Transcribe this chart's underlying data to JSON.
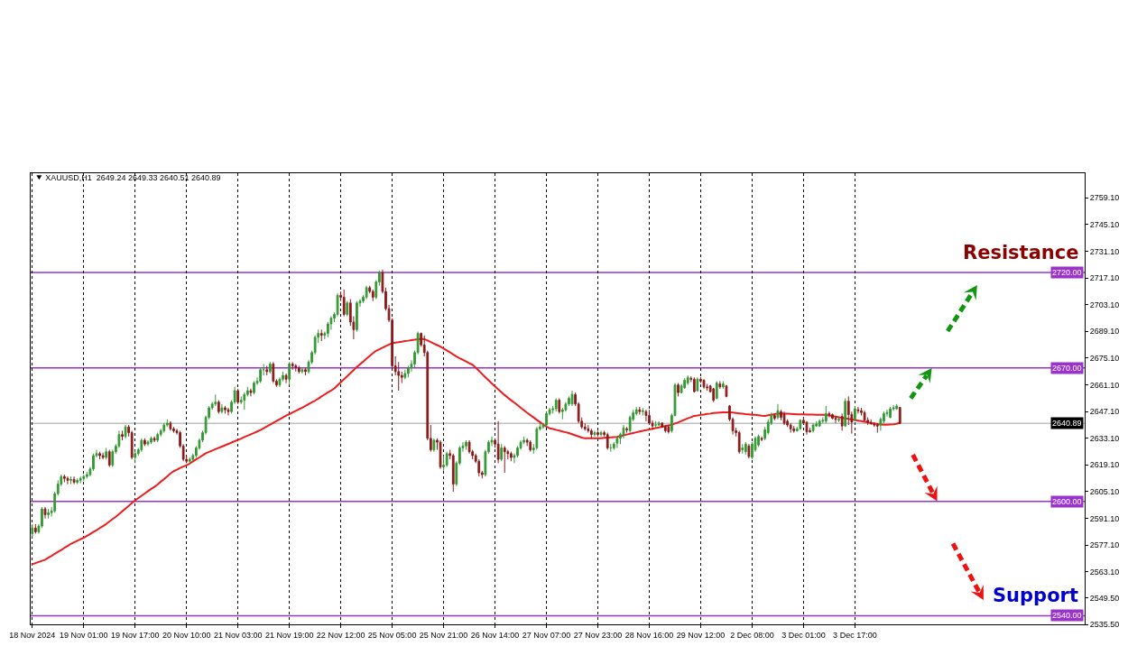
{
  "chart_data": {
    "type": "candlestick",
    "title": "XAUUSD,H1  2649.24 2649.33 2640.51 2640.89",
    "categories": [
      "18 Nov 2024",
      null,
      null,
      null,
      null,
      null,
      null,
      null,
      null,
      null,
      null,
      null,
      null,
      null,
      null,
      null,
      "19 Nov 01:00",
      null,
      null,
      null,
      null,
      null,
      null,
      null,
      null,
      null,
      null,
      null,
      null,
      null,
      null,
      null,
      "19 Nov 17:00",
      null,
      null,
      null,
      null,
      null,
      null,
      null,
      null,
      null,
      null,
      null,
      null,
      null,
      null,
      null,
      "20 Nov 10:00",
      null,
      null,
      null,
      null,
      null,
      null,
      null,
      null,
      null,
      null,
      null,
      null,
      null,
      null,
      null,
      "21 Nov 03:00",
      null,
      null,
      null,
      null,
      null,
      null,
      null,
      null,
      null,
      null,
      null,
      null,
      null,
      null,
      null,
      "21 Nov 19:00",
      null,
      null,
      null,
      null,
      null,
      null,
      null,
      null,
      null,
      null,
      null,
      null,
      null,
      null,
      null,
      "22 Nov 12:00",
      null,
      null,
      null,
      null,
      null,
      null,
      null,
      null,
      null,
      null,
      null,
      null,
      null,
      null,
      null,
      "25 Nov 05:00",
      null,
      null,
      null,
      null,
      null,
      null,
      null,
      null,
      null,
      null,
      null,
      null,
      null,
      null,
      null,
      "25 Nov 21:00",
      null,
      null,
      null,
      null,
      null,
      null,
      null,
      null,
      null,
      null,
      null,
      null,
      null,
      null,
      null,
      "26 Nov 14:00",
      null,
      null,
      null,
      null,
      null,
      null,
      null,
      null,
      null,
      null,
      null,
      null,
      null,
      null,
      null,
      "27 Nov 07:00",
      null,
      null,
      null,
      null,
      null,
      null,
      null,
      null,
      null,
      null,
      null,
      null,
      null,
      null,
      null,
      "27 Nov 23:00",
      null,
      null,
      null,
      null,
      null,
      null,
      null,
      null,
      null,
      null,
      null,
      null,
      null,
      null,
      null,
      "28 Nov 16:00",
      null,
      null,
      null,
      null,
      null,
      null,
      null,
      null,
      null,
      null,
      null,
      null,
      null,
      null,
      null,
      "29 Nov 12:00",
      null,
      null,
      null,
      null,
      null,
      null,
      null,
      null,
      null,
      null,
      null,
      null,
      null,
      null,
      null,
      "2 Dec 08:00",
      null,
      null,
      null,
      null,
      null,
      null,
      null,
      null,
      null,
      null,
      null,
      null,
      null,
      null,
      null,
      "3 Dec 01:00",
      null,
      null,
      null,
      null,
      null,
      null,
      null,
      null,
      null,
      null,
      null,
      null,
      null,
      null,
      null,
      "3 Dec 17:00",
      null,
      null,
      null,
      null,
      null,
      null,
      null,
      null,
      null,
      null,
      null,
      null,
      null,
      null
    ],
    "ohlc": [
      [
        2583,
        2588,
        2581,
        2586
      ],
      [
        2586,
        2588,
        2583,
        2584
      ],
      [
        2584,
        2588,
        2583,
        2587
      ],
      [
        2587,
        2597,
        2586,
        2596
      ],
      [
        2596,
        2597,
        2591,
        2593
      ],
      [
        2593,
        2596,
        2591,
        2594
      ],
      [
        2594,
        2597,
        2592,
        2595
      ],
      [
        2595,
        2605,
        2594,
        2604
      ],
      [
        2604,
        2611,
        2603,
        2609
      ],
      [
        2609,
        2614,
        2608,
        2613
      ],
      [
        2613,
        2614,
        2610,
        2612
      ],
      [
        2612,
        2613,
        2609,
        2611
      ],
      [
        2611,
        2613,
        2609,
        2611.5
      ],
      [
        2611.5,
        2613,
        2609,
        2610
      ],
      [
        2610,
        2612,
        2609,
        2611
      ],
      [
        2611,
        2613,
        2609.5,
        2612
      ],
      [
        2612,
        2614,
        2610.5,
        2613
      ],
      [
        2613,
        2615.5,
        2612,
        2614
      ],
      [
        2614,
        2618,
        2613,
        2617
      ],
      [
        2617,
        2625,
        2616,
        2624
      ],
      [
        2624,
        2627,
        2623,
        2625
      ],
      [
        2625,
        2626,
        2622,
        2624
      ],
      [
        2624,
        2625.5,
        2622,
        2623
      ],
      [
        2623,
        2628,
        2622,
        2626
      ],
      [
        2626,
        2627,
        2618,
        2619
      ],
      [
        2619,
        2627,
        2618,
        2626
      ],
      [
        2626,
        2630,
        2625,
        2629
      ],
      [
        2629,
        2637,
        2628,
        2635
      ],
      [
        2635,
        2637,
        2632,
        2634
      ],
      [
        2634,
        2640,
        2633,
        2639
      ],
      [
        2639,
        2640,
        2634,
        2636
      ],
      [
        2636,
        2637,
        2622,
        2623
      ],
      [
        2623,
        2627,
        2620,
        2625
      ],
      [
        2625,
        2628,
        2624,
        2627
      ],
      [
        2627,
        2633,
        2626,
        2632
      ],
      [
        2632,
        2633,
        2629,
        2630
      ],
      [
        2630,
        2632,
        2629,
        2631
      ],
      [
        2631,
        2634,
        2630,
        2633
      ],
      [
        2633,
        2634,
        2631,
        2632
      ],
      [
        2632,
        2636,
        2631,
        2635
      ],
      [
        2635,
        2638,
        2634,
        2637
      ],
      [
        2637,
        2641,
        2636,
        2640
      ],
      [
        2640,
        2643,
        2639,
        2641
      ],
      [
        2641,
        2642,
        2637,
        2638
      ],
      [
        2638,
        2639,
        2636,
        2637
      ],
      [
        2637,
        2638,
        2635,
        2636
      ],
      [
        2636,
        2637,
        2628,
        2629
      ],
      [
        2629,
        2630,
        2621,
        2622
      ],
      [
        2622,
        2624,
        2620,
        2621
      ],
      [
        2621,
        2623,
        2620,
        2622
      ],
      [
        2622,
        2625,
        2621,
        2624
      ],
      [
        2624,
        2629,
        2623,
        2628
      ],
      [
        2628,
        2633,
        2627,
        2632
      ],
      [
        2632,
        2637,
        2631,
        2636
      ],
      [
        2636,
        2645,
        2635,
        2644
      ],
      [
        2644,
        2650,
        2643,
        2649
      ],
      [
        2649,
        2652,
        2648,
        2651
      ],
      [
        2651,
        2656,
        2650,
        2652
      ],
      [
        2652,
        2653,
        2646,
        2647
      ],
      [
        2647,
        2651,
        2646,
        2649
      ],
      [
        2649,
        2650,
        2646,
        2648
      ],
      [
        2648,
        2649,
        2645,
        2647
      ],
      [
        2647,
        2653,
        2646,
        2652
      ],
      [
        2652,
        2660,
        2651,
        2658
      ],
      [
        2658,
        2659,
        2651,
        2652
      ],
      [
        2652,
        2655,
        2651,
        2653
      ],
      [
        2653,
        2657,
        2648,
        2656
      ],
      [
        2656,
        2660,
        2655,
        2658
      ],
      [
        2658,
        2659,
        2655,
        2657
      ],
      [
        2657,
        2663,
        2656,
        2662
      ],
      [
        2662,
        2665,
        2661,
        2663
      ],
      [
        2663,
        2670,
        2662,
        2669
      ],
      [
        2669,
        2672,
        2666,
        2669
      ],
      [
        2669,
        2671,
        2666,
        2668
      ],
      [
        2668,
        2673,
        2667,
        2672
      ],
      [
        2672,
        2673,
        2662,
        2663
      ],
      [
        2663,
        2664,
        2660,
        2661
      ],
      [
        2661,
        2665,
        2660,
        2664
      ],
      [
        2664,
        2668,
        2663,
        2666
      ],
      [
        2666,
        2667,
        2662,
        2664
      ],
      [
        2664,
        2673,
        2661,
        2672
      ],
      [
        2672,
        2673,
        2669,
        2671
      ],
      [
        2671,
        2672,
        2668,
        2670
      ],
      [
        2670,
        2671,
        2667,
        2668
      ],
      [
        2668,
        2670,
        2667,
        2669
      ],
      [
        2669,
        2670,
        2666,
        2668
      ],
      [
        2668,
        2674,
        2667,
        2673
      ],
      [
        2673,
        2679,
        2672,
        2678
      ],
      [
        2678,
        2687,
        2677,
        2686
      ],
      [
        2686,
        2690,
        2683,
        2688
      ],
      [
        2688,
        2690,
        2684,
        2687
      ],
      [
        2687,
        2689,
        2685,
        2688
      ],
      [
        2688,
        2694,
        2686,
        2693
      ],
      [
        2693,
        2697,
        2690,
        2696
      ],
      [
        2696,
        2699,
        2694,
        2698
      ],
      [
        2698,
        2709,
        2697,
        2708
      ],
      [
        2708,
        2710,
        2705,
        2707
      ],
      [
        2707,
        2711,
        2697,
        2698
      ],
      [
        2698,
        2705,
        2697,
        2704
      ],
      [
        2704,
        2706,
        2692,
        2694
      ],
      [
        2694,
        2697,
        2685,
        2690
      ],
      [
        2690,
        2705,
        2689,
        2704
      ],
      [
        2704,
        2706,
        2702,
        2705
      ],
      [
        2705,
        2708,
        2704,
        2707
      ],
      [
        2707,
        2713,
        2706,
        2712
      ],
      [
        2712,
        2713,
        2709,
        2710
      ],
      [
        2710,
        2711,
        2705,
        2707
      ],
      [
        2707,
        2716,
        2706,
        2715
      ],
      [
        2715,
        2721,
        2713,
        2720
      ],
      [
        2720,
        2721.5,
        2709,
        2710
      ],
      [
        2710,
        2712,
        2700,
        2701
      ],
      [
        2701,
        2703,
        2694,
        2695
      ],
      [
        2695,
        2696,
        2670,
        2671
      ],
      [
        2671,
        2676,
        2666,
        2668
      ],
      [
        2668,
        2673,
        2658,
        2666
      ],
      [
        2666,
        2668,
        2662,
        2665
      ],
      [
        2665,
        2669,
        2664,
        2667
      ],
      [
        2667,
        2671,
        2665,
        2670
      ],
      [
        2670,
        2674,
        2668,
        2672
      ],
      [
        2672,
        2679,
        2670,
        2678
      ],
      [
        2678,
        2689,
        2677,
        2688
      ],
      [
        2688,
        2688.5,
        2681,
        2682
      ],
      [
        2682,
        2687,
        2676,
        2678
      ],
      [
        2678,
        2679,
        2632,
        2633
      ],
      [
        2633,
        2640,
        2626,
        2627
      ],
      [
        2627,
        2633,
        2626,
        2632
      ],
      [
        2632,
        2633,
        2627,
        2631
      ],
      [
        2631,
        2632,
        2617,
        2618
      ],
      [
        2618,
        2624,
        2616,
        2619
      ],
      [
        2619,
        2626,
        2618,
        2625
      ],
      [
        2625,
        2627,
        2622,
        2624
      ],
      [
        2624,
        2625,
        2605,
        2609
      ],
      [
        2609,
        2621,
        2608,
        2620
      ],
      [
        2620,
        2629,
        2619,
        2628
      ],
      [
        2628,
        2631,
        2626,
        2629
      ],
      [
        2629,
        2632,
        2627,
        2631
      ],
      [
        2631,
        2632,
        2625,
        2626
      ],
      [
        2626,
        2627,
        2622,
        2624
      ],
      [
        2624,
        2625,
        2620,
        2621
      ],
      [
        2621,
        2622,
        2613,
        2615
      ],
      [
        2615,
        2616,
        2612,
        2614
      ],
      [
        2614,
        2627,
        2613,
        2626
      ],
      [
        2626,
        2632,
        2625,
        2631
      ],
      [
        2631,
        2634,
        2629,
        2632
      ],
      [
        2632,
        2633,
        2628,
        2630
      ],
      [
        2630,
        2642,
        2620,
        2622
      ],
      [
        2622,
        2630,
        2621,
        2628
      ],
      [
        2628,
        2629,
        2615,
        2626
      ],
      [
        2626,
        2627,
        2622,
        2625
      ],
      [
        2625,
        2626,
        2621,
        2623
      ],
      [
        2623,
        2625,
        2620,
        2624
      ],
      [
        2624,
        2629,
        2623,
        2628
      ],
      [
        2628,
        2632,
        2627,
        2631
      ],
      [
        2631,
        2634,
        2630,
        2632
      ],
      [
        2632,
        2633,
        2629,
        2631
      ],
      [
        2631,
        2632,
        2626,
        2627
      ],
      [
        2627,
        2630,
        2625,
        2628
      ],
      [
        2628,
        2639,
        2627,
        2638
      ],
      [
        2638,
        2641,
        2637,
        2639
      ],
      [
        2639,
        2641,
        2638,
        2640
      ],
      [
        2640,
        2647,
        2639,
        2646
      ],
      [
        2646,
        2649,
        2645,
        2648
      ],
      [
        2648,
        2650,
        2646,
        2648.5
      ],
      [
        2648.5,
        2654,
        2647,
        2653
      ],
      [
        2653,
        2654,
        2646,
        2647
      ],
      [
        2647,
        2649,
        2643,
        2648
      ],
      [
        2648,
        2652,
        2647,
        2651
      ],
      [
        2651,
        2655,
        2650,
        2654
      ],
      [
        2651,
        2658,
        2650,
        2656
      ],
      [
        2656,
        2657,
        2650,
        2651
      ],
      [
        2651,
        2652,
        2641,
        2642
      ],
      [
        2642,
        2644,
        2638,
        2639
      ],
      [
        2639,
        2641,
        2637,
        2638
      ],
      [
        2638,
        2640,
        2636,
        2637
      ],
      [
        2637,
        2638,
        2633,
        2635
      ],
      [
        2635,
        2637,
        2634,
        2636
      ],
      [
        2636,
        2637,
        2634,
        2635
      ],
      [
        2635,
        2637,
        2634,
        2636
      ],
      [
        2636,
        2637,
        2634,
        2635
      ],
      [
        2635,
        2636,
        2627,
        2628
      ],
      [
        2628,
        2630,
        2626,
        2628
      ],
      [
        2628,
        2631,
        2627,
        2630
      ],
      [
        2630.5,
        2634,
        2628,
        2633
      ],
      [
        2633,
        2636,
        2630,
        2635
      ],
      [
        2635,
        2640,
        2633,
        2638.5
      ],
      [
        2638,
        2639,
        2636,
        2637.5
      ],
      [
        2637,
        2645,
        2636,
        2644
      ],
      [
        2643,
        2648,
        2642,
        2646.5
      ],
      [
        2646,
        2649.5,
        2645,
        2648
      ],
      [
        2648,
        2649.5,
        2645.5,
        2647
      ],
      [
        2647,
        2649,
        2645,
        2647.5
      ],
      [
        2647,
        2648,
        2642,
        2645
      ],
      [
        2645,
        2648,
        2640,
        2641
      ],
      [
        2641,
        2642.5,
        2637.5,
        2639.5
      ],
      [
        2640,
        2642,
        2638.5,
        2640
      ],
      [
        2640,
        2642,
        2639.5,
        2641
      ],
      [
        2641,
        2641.5,
        2638.5,
        2639
      ],
      [
        2639,
        2640,
        2636,
        2637
      ],
      [
        2639,
        2640,
        2635.5,
        2636.5
      ],
      [
        2637,
        2646,
        2636,
        2645
      ],
      [
        2645,
        2662,
        2644.5,
        2661
      ],
      [
        2661,
        2662,
        2655,
        2657
      ],
      [
        2657,
        2661.5,
        2656.5,
        2660.5
      ],
      [
        2659.5,
        2664.5,
        2659,
        2663.5
      ],
      [
        2662,
        2666,
        2661,
        2665
      ],
      [
        2664.5,
        2665.5,
        2662.5,
        2664
      ],
      [
        2664,
        2665,
        2657,
        2657.5
      ],
      [
        2658,
        2665,
        2657.5,
        2664
      ],
      [
        2664,
        2665,
        2662,
        2663
      ],
      [
        2663.5,
        2664,
        2659,
        2660
      ],
      [
        2660,
        2661.5,
        2658,
        2659.5
      ],
      [
        2660.5,
        2661,
        2657,
        2657.5
      ],
      [
        2659,
        2659.5,
        2652,
        2653
      ],
      [
        2654,
        2663,
        2653.5,
        2662
      ],
      [
        2661.5,
        2663,
        2659,
        2660
      ],
      [
        2660,
        2663,
        2659,
        2661.5
      ],
      [
        2660.5,
        2661,
        2654.5,
        2655
      ],
      [
        2650,
        2650.5,
        2642,
        2643
      ],
      [
        2643,
        2644,
        2635,
        2637
      ],
      [
        2637,
        2638.5,
        2634,
        2636
      ],
      [
        2636,
        2637,
        2625,
        2626
      ],
      [
        2627,
        2630,
        2625,
        2628
      ],
      [
        2626,
        2631,
        2624.5,
        2630
      ],
      [
        2629,
        2630,
        2622.5,
        2623.5
      ],
      [
        2623,
        2631,
        2622,
        2630
      ],
      [
        2627,
        2634,
        2626,
        2633
      ],
      [
        2629.5,
        2635,
        2628.5,
        2634
      ],
      [
        2633,
        2634,
        2631.5,
        2632.5
      ],
      [
        2633,
        2639,
        2632,
        2637.5
      ],
      [
        2636,
        2643,
        2635,
        2641.5
      ],
      [
        2641,
        2646.5,
        2640,
        2645
      ],
      [
        2645,
        2645.5,
        2642.5,
        2643.5
      ],
      [
        2644,
        2651,
        2643,
        2647.5
      ],
      [
        2647,
        2648,
        2642.5,
        2644
      ],
      [
        2645.5,
        2647,
        2640,
        2641
      ],
      [
        2642,
        2643,
        2639,
        2640
      ],
      [
        2640,
        2641,
        2636,
        2638
      ],
      [
        2638,
        2639.5,
        2636,
        2637
      ],
      [
        2637,
        2639,
        2636.5,
        2638
      ],
      [
        2638,
        2643,
        2637.5,
        2642.5
      ],
      [
        2642.5,
        2644,
        2640.5,
        2641
      ],
      [
        2641.5,
        2642,
        2635,
        2636.5
      ],
      [
        2637,
        2638.5,
        2636,
        2636.5
      ],
      [
        2637,
        2641,
        2636,
        2640
      ],
      [
        2639.5,
        2642,
        2639,
        2640.5
      ],
      [
        2639.5,
        2643,
        2639,
        2642
      ],
      [
        2642,
        2644,
        2641,
        2642.5
      ],
      [
        2642,
        2650,
        2641,
        2646
      ],
      [
        2646,
        2647,
        2644,
        2645.5
      ],
      [
        2645.5,
        2646,
        2643,
        2643.5
      ],
      [
        2643.5,
        2644.5,
        2641,
        2643
      ],
      [
        2642.5,
        2644,
        2641.5,
        2643
      ],
      [
        2644.5,
        2646,
        2637,
        2639.5
      ],
      [
        2639.5,
        2654,
        2639,
        2652.5
      ],
      [
        2652.5,
        2655,
        2640,
        2645.5
      ],
      [
        2645.5,
        2647,
        2635.5,
        2641.5
      ],
      [
        2643,
        2650,
        2642,
        2648.5
      ],
      [
        2648,
        2649.5,
        2646,
        2647.5
      ],
      [
        2647.5,
        2649,
        2645,
        2646.5
      ],
      [
        2646.5,
        2647.5,
        2642,
        2642.5
      ],
      [
        2642.5,
        2644,
        2640,
        2641.5
      ],
      [
        2641.5,
        2643,
        2640,
        2641
      ],
      [
        2640.5,
        2641.5,
        2639,
        2640
      ],
      [
        2640,
        2641,
        2636,
        2639.5
      ],
      [
        2640,
        2644,
        2637,
        2643
      ],
      [
        2642,
        2647,
        2641,
        2646
      ],
      [
        2646,
        2648,
        2644.5,
        2646.5
      ],
      [
        2644,
        2649.5,
        2643.5,
        2648.5
      ],
      [
        2648.5,
        2650.5,
        2647.5,
        2649
      ],
      [
        2648.5,
        2651,
        2648,
        2650
      ],
      [
        2649.24,
        2649.33,
        2640.51,
        2640.89
      ]
    ],
    "colors": [
      "#339933",
      "#8b1a1a",
      "#339933",
      "#339933",
      "#8b1a1a",
      "#339933",
      "#339933",
      "#339933",
      "#339933",
      "#339933",
      "#8b1a1a",
      "#8b1a1a",
      "#339933",
      "#8b1a1a",
      "#339933",
      "#339933",
      "#339933",
      "#339933",
      "#339933",
      "#339933",
      "#339933",
      "#8b1a1a",
      "#8b1a1a",
      "#339933",
      "#8b1a1a",
      "#339933",
      "#339933",
      "#339933",
      "#8b1a1a",
      "#339933",
      "#8b1a1a",
      "#8b1a1a",
      "#339933",
      "#339933",
      "#339933",
      "#8b1a1a",
      "#339933",
      "#339933",
      "#8b1a1a",
      "#339933",
      "#339933",
      "#339933",
      "#339933",
      "#8b1a1a",
      "#8b1a1a",
      "#8b1a1a",
      "#8b1a1a",
      "#8b1a1a",
      "#8b1a1a",
      "#339933",
      "#339933",
      "#339933",
      "#339933",
      "#339933",
      "#339933",
      "#339933",
      "#339933",
      "#339933",
      "#8b1a1a",
      "#339933",
      "#8b1a1a",
      "#8b1a1a",
      "#339933",
      "#339933",
      "#8b1a1a",
      "#339933",
      "#339933",
      "#339933",
      "#8b1a1a",
      "#339933",
      "#339933",
      "#339933",
      "#339933",
      "#8b1a1a",
      "#339933",
      "#8b1a1a",
      "#8b1a1a",
      "#339933",
      "#339933",
      "#8b1a1a",
      "#339933",
      "#8b1a1a",
      "#8b1a1a",
      "#8b1a1a",
      "#339933",
      "#8b1a1a",
      "#339933",
      "#339933",
      "#339933",
      "#339933",
      "#8b1a1a",
      "#339933",
      "#339933",
      "#339933",
      "#339933",
      "#339933",
      "#8b1a1a",
      "#8b1a1a",
      "#339933",
      "#8b1a1a",
      "#8b1a1a",
      "#339933",
      "#339933",
      "#339933",
      "#339933",
      "#8b1a1a",
      "#8b1a1a",
      "#339933",
      "#339933",
      "#8b1a1a",
      "#8b1a1a",
      "#8b1a1a",
      "#8b1a1a",
      "#8b1a1a",
      "#8b1a1a",
      "#8b1a1a",
      "#339933",
      "#339933",
      "#339933",
      "#339933",
      "#339933",
      "#8b1a1a",
      "#8b1a1a",
      "#8b1a1a",
      "#8b1a1a",
      "#339933",
      "#8b1a1a",
      "#8b1a1a",
      "#339933",
      "#339933",
      "#8b1a1a",
      "#8b1a1a",
      "#339933",
      "#339933",
      "#339933",
      "#339933",
      "#8b1a1a",
      "#8b1a1a",
      "#8b1a1a",
      "#8b1a1a",
      "#8b1a1a",
      "#339933",
      "#339933",
      "#339933",
      "#8b1a1a",
      "#8b1a1a",
      "#339933",
      "#8b1a1a",
      "#8b1a1a",
      "#8b1a1a",
      "#339933",
      "#339933",
      "#339933",
      "#339933",
      "#8b1a1a",
      "#8b1a1a",
      "#339933",
      "#339933",
      "#339933",
      "#339933",
      "#339933",
      "#339933",
      "#339933",
      "#339933",
      "#8b1a1a",
      "#339933",
      "#339933",
      "#339933",
      "#339933",
      "#8b1a1a",
      "#8b1a1a",
      "#8b1a1a",
      "#8b1a1a",
      "#8b1a1a",
      "#8b1a1a",
      "#339933",
      "#8b1a1a",
      "#339933",
      "#8b1a1a",
      "#8b1a1a",
      "#339933",
      "#339933",
      "#339933",
      "#339933",
      "#339933",
      "#8b1a1a",
      "#339933",
      "#339933",
      "#339933",
      "#8b1a1a",
      "#339933",
      "#8b1a1a",
      "#8b1a1a",
      "#8b1a1a",
      "#339933",
      "#339933",
      "#8b1a1a",
      "#8b1a1a",
      "#8b1a1a",
      "#339933",
      "#339933",
      "#8b1a1a",
      "#339933",
      "#339933",
      "#339933",
      "#8b1a1a",
      "#8b1a1a",
      "#339933",
      "#8b1a1a",
      "#8b1a1a",
      "#8b1a1a",
      "#8b1a1a",
      "#8b1a1a",
      "#339933",
      "#8b1a1a",
      "#339933",
      "#8b1a1a",
      "#8b1a1a",
      "#8b1a1a",
      "#8b1a1a",
      "#8b1a1a",
      "#339933",
      "#339933",
      "#8b1a1a",
      "#339933",
      "#339933",
      "#339933",
      "#8b1a1a",
      "#339933",
      "#339933",
      "#339933",
      "#8b1a1a",
      "#339933",
      "#8b1a1a",
      "#8b1a1a",
      "#8b1a1a",
      "#8b1a1a",
      "#8b1a1a",
      "#339933",
      "#339933",
      "#8b1a1a",
      "#8b1a1a",
      "#8b1a1a",
      "#339933",
      "#339933",
      "#339933",
      "#339933",
      "#339933",
      "#8b1a1a",
      "#8b1a1a",
      "#8b1a1a",
      "#339933",
      "#8b1a1a",
      "#339933",
      "#8b1a1a",
      "#8b1a1a",
      "#339933",
      "#8b1a1a",
      "#8b1a1a",
      "#8b1a1a",
      "#8b1a1a",
      "#8b1a1a",
      "#8b1a1a",
      "#8b1a1a",
      "#339933",
      "#339933",
      "#339933",
      "#339933",
      "#339933",
      "#339933",
      "#8b1a1a"
    ],
    "series": [
      {
        "type": "line",
        "color": "#ee1c1c",
        "values": [
          2567.0,
          2567.6,
          2568.2,
          2568.8,
          2569.4,
          2570.4,
          2571.4,
          2572.5,
          2573.5,
          2574.5,
          2575.6,
          2576.6,
          2577.7,
          2578.5,
          2579.3,
          2580.1,
          2580.9,
          2581.9,
          2582.9,
          2583.9,
          2584.9,
          2586.0,
          2587.0,
          2588.1,
          2589.4,
          2590.7,
          2591.9,
          2593.3,
          2594.8,
          2596.2,
          2597.6,
          2599.1,
          2600.5,
          2601.7,
          2602.9,
          2604.1,
          2605.3,
          2606.5,
          2607.6,
          2608.8,
          2610.3,
          2611.7,
          2613.1,
          2614.6,
          2615.8,
          2616.6,
          2617.5,
          2618.2,
          2618.9,
          2619.8,
          2620.9,
          2622.0,
          2623.0,
          2624.1,
          2625.2,
          2625.9,
          2626.6,
          2627.3,
          2628.0,
          2628.7,
          2629.4,
          2630.1,
          2630.8,
          2631.5,
          2632.2,
          2632.9,
          2633.7,
          2634.4,
          2635.1,
          2635.8,
          2636.6,
          2637.4,
          2638.3,
          2639.3,
          2640.2,
          2641.2,
          2642.1,
          2643.1,
          2644.0,
          2644.9,
          2645.7,
          2646.6,
          2647.4,
          2648.3,
          2649.1,
          2650.0,
          2651.0,
          2651.9,
          2652.8,
          2653.8,
          2655.0,
          2656.0,
          2657.1,
          2658.1,
          2659.2,
          2660.8,
          2662.4,
          2664.0,
          2665.6,
          2667.2,
          2668.8,
          2670.4,
          2671.9,
          2673.3,
          2674.8,
          2676.2,
          2677.6,
          2678.9,
          2679.7,
          2680.5,
          2681.4,
          2682.2,
          2682.9,
          2683.2,
          2683.4,
          2683.7,
          2684.0,
          2684.2,
          2684.5,
          2684.7,
          2685.0,
          2685.2,
          2685.0,
          2684.3,
          2683.5,
          2682.7,
          2681.9,
          2681.1,
          2680.1,
          2679.1,
          2678.1,
          2677.0,
          2675.9,
          2675.0,
          2674.2,
          2673.3,
          2672.4,
          2671.6,
          2670.1,
          2668.4,
          2666.7,
          2665.0,
          2663.4,
          2661.8,
          2660.3,
          2658.7,
          2657.2,
          2655.7,
          2654.3,
          2653.0,
          2651.7,
          2650.4,
          2649.0,
          2647.7,
          2646.4,
          2645.2,
          2644.0,
          2642.7,
          2641.5,
          2640.3,
          2639.1,
          2638.3,
          2637.9,
          2637.5,
          2637.1,
          2636.6,
          2636.2,
          2635.8,
          2635.2,
          2634.6,
          2634.0,
          2633.4,
          2633.0,
          2633.0,
          2633.0,
          2633.0,
          2633.0,
          2633.1,
          2633.3,
          2633.4,
          2633.5,
          2633.7,
          2633.8,
          2634.2,
          2634.6,
          2635.0,
          2635.4,
          2635.8,
          2636.2,
          2636.6,
          2637.0,
          2637.3,
          2637.7,
          2638.0,
          2638.4,
          2638.7,
          2639.1,
          2639.4,
          2639.8,
          2640.1,
          2640.8,
          2641.4,
          2642.1,
          2642.8,
          2643.5,
          2644.1,
          2644.8,
          2645.0,
          2645.3,
          2645.5,
          2645.8,
          2646.0,
          2646.3,
          2646.4,
          2646.5,
          2646.6,
          2646.6,
          2646.7,
          2646.5,
          2646.3,
          2646.1,
          2645.9,
          2645.7,
          2645.6,
          2645.4,
          2645.3,
          2645.1,
          2644.9,
          2644.8,
          2645.1,
          2645.4,
          2645.7,
          2646.0,
          2646.1,
          2646.0,
          2645.9,
          2645.8,
          2645.7,
          2645.6,
          2645.6,
          2645.6,
          2645.5,
          2645.5,
          2645.5,
          2645.4,
          2645.4,
          2645.3,
          2645.3,
          2645.0,
          2644.7,
          2644.4,
          2644.1,
          2643.8,
          2643.5,
          2643.2,
          2642.9,
          2642.6,
          2642.3,
          2642.0,
          2641.7,
          2641.4,
          2641.0,
          2640.8,
          2640.5,
          2640.3,
          2640.1,
          2640.2,
          2640.3,
          2640.4,
          2640.6,
          2641.2
        ]
      }
    ],
    "ylim": [
      2535.5,
      2772
    ],
    "yticks": [
      {
        "value": 2759.1,
        "label": "2759.10"
      },
      {
        "value": 2745.1,
        "label": "2745.10"
      },
      {
        "value": 2731.1,
        "label": "2731.10"
      },
      {
        "value": 2717.1,
        "label": "2717.10"
      },
      {
        "value": 2703.1,
        "label": "2703.10"
      },
      {
        "value": 2689.1,
        "label": "2689.10"
      },
      {
        "value": 2675.1,
        "label": "2675.10"
      },
      {
        "value": 2661.1,
        "label": "2661.10"
      },
      {
        "value": 2647.1,
        "label": "2647.10"
      },
      {
        "value": 2633.1,
        "label": "2633.10"
      },
      {
        "value": 2619.1,
        "label": "2619.10"
      },
      {
        "value": 2605.1,
        "label": "2605.10"
      },
      {
        "value": 2591.1,
        "label": "2591.10"
      },
      {
        "value": 2577.1,
        "label": "2577.10"
      },
      {
        "value": 2563.1,
        "label": "2563.10"
      },
      {
        "value": 2549.5,
        "label": "2549.50"
      },
      {
        "value": 2535.5,
        "label": "2535.50"
      }
    ],
    "ref_lines": [
      {
        "axis": "y",
        "value": 2720,
        "label": "2720.00",
        "color": "#9933cc"
      },
      {
        "axis": "y",
        "value": 2670,
        "label": "2670.00",
        "color": "#9933cc"
      },
      {
        "axis": "y",
        "value": 2600,
        "label": "2600.00",
        "color": "#9933cc"
      },
      {
        "axis": "y",
        "value": 2540,
        "label": "2540.00",
        "color": "#9933cc"
      },
      {
        "axis": "y",
        "value": 2640.89,
        "label": "2640.89",
        "color": "#c0c0c0"
      }
    ],
    "annotations": [
      {
        "text": "Resistance",
        "y": 2720
      },
      {
        "text": "Support",
        "y": 2540
      }
    ],
    "grid": "x"
  }
}
